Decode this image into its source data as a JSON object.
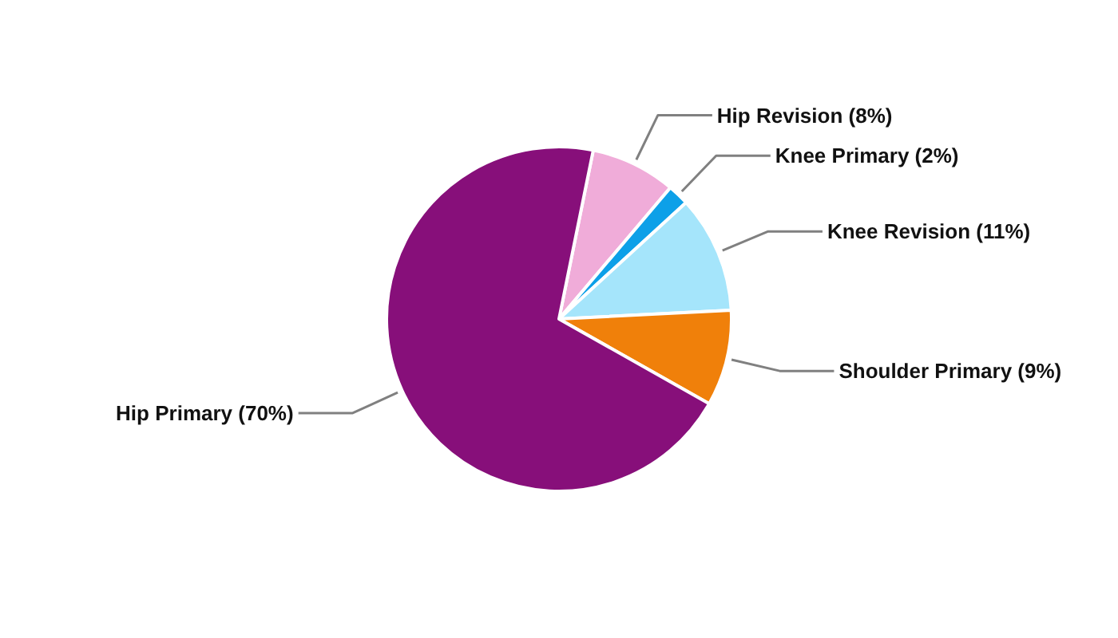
{
  "chart_data": {
    "type": "pie",
    "categories": [
      "Hip Revision",
      "Knee Primary",
      "Knee Revision",
      "Shoulder Primary",
      "Hip Primary"
    ],
    "values": [
      8,
      2,
      11,
      9,
      70
    ],
    "value_labels": [
      "(8%)",
      "(2%)",
      "(11%)",
      "(9%)",
      "(70%)"
    ],
    "colors": [
      "#f0acd9",
      "#0da0e8",
      "#a5e5fb",
      "#f0800a",
      "#870f7a"
    ]
  }
}
